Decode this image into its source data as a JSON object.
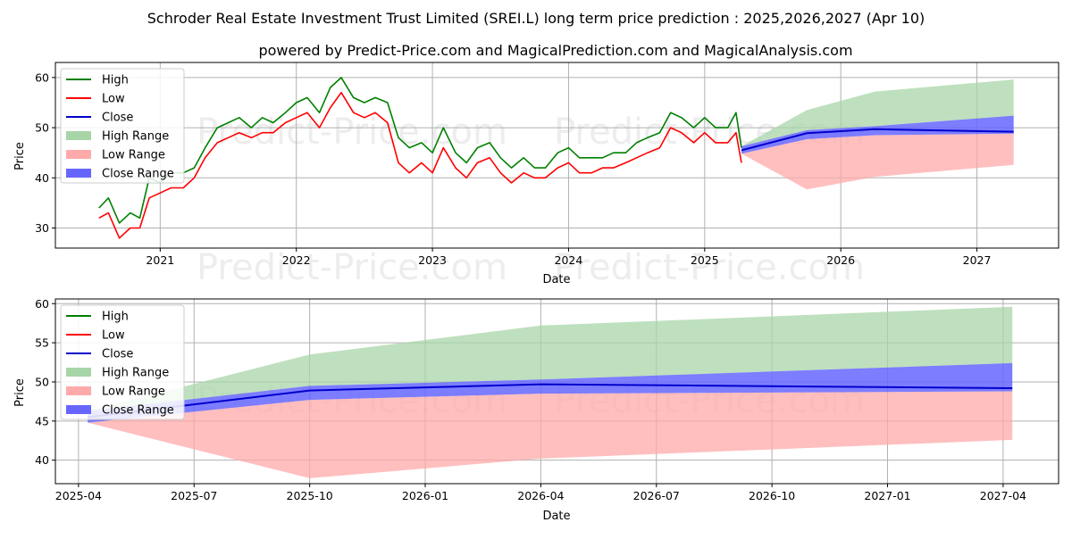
{
  "title": "Schroder Real Estate Investment Trust Limited (SREI.L) long term price prediction : 2025,2026,2027 (Apr 10)",
  "subtitle": "powered by Predict-Price.com and MagicalPrediction.com and MagicalAnalysis.com",
  "watermark": "Predict-Price.com",
  "colors": {
    "high": "#008000",
    "low": "#ff0000",
    "close": "#0000cc",
    "high_range": "#a8d5a8",
    "low_range": "#ffaaaa",
    "close_range": "#6666ff",
    "grid": "#b0b0b0"
  },
  "chart_data": [
    {
      "type": "line",
      "panel": "top",
      "xlabel": "Date",
      "ylabel": "Price",
      "ylim": [
        26,
        63
      ],
      "xlim": [
        2020.23,
        2027.6
      ],
      "x_ticks": [
        "2021",
        "2022",
        "2023",
        "2024",
        "2025",
        "2026",
        "2027"
      ],
      "y_ticks": [
        "30",
        "40",
        "50",
        "60"
      ],
      "grid": true,
      "legend_position": "top-left",
      "legend": [
        "High",
        "Low",
        "Close",
        "High Range",
        "Low Range",
        "Close Range"
      ],
      "history_x": [
        2020.55,
        2020.62,
        2020.7,
        2020.78,
        2020.85,
        2020.92,
        2021.0,
        2021.08,
        2021.17,
        2021.25,
        2021.33,
        2021.42,
        2021.5,
        2021.58,
        2021.67,
        2021.75,
        2021.83,
        2021.92,
        2022.0,
        2022.08,
        2022.17,
        2022.25,
        2022.33,
        2022.42,
        2022.5,
        2022.58,
        2022.67,
        2022.75,
        2022.83,
        2022.92,
        2023.0,
        2023.08,
        2023.17,
        2023.25,
        2023.33,
        2023.42,
        2023.5,
        2023.58,
        2023.67,
        2023.75,
        2023.83,
        2023.92,
        2024.0,
        2024.08,
        2024.17,
        2024.25,
        2024.33,
        2024.42,
        2024.5,
        2024.58,
        2024.67,
        2024.75,
        2024.83,
        2024.92,
        2025.0,
        2025.08,
        2025.17,
        2025.23,
        2025.27
      ],
      "history_high": [
        34,
        36,
        31,
        33,
        32,
        40,
        39,
        41,
        41,
        42,
        46,
        50,
        51,
        52,
        50,
        52,
        51,
        53,
        55,
        56,
        53,
        58,
        60,
        56,
        55,
        56,
        55,
        48,
        46,
        47,
        45,
        50,
        45,
        43,
        46,
        47,
        44,
        42,
        44,
        42,
        42,
        45,
        46,
        44,
        44,
        44,
        45,
        45,
        47,
        48,
        49,
        53,
        52,
        50,
        52,
        50,
        50,
        53,
        46
      ],
      "history_low": [
        32,
        33,
        28,
        30,
        30,
        36,
        37,
        38,
        38,
        40,
        44,
        47,
        48,
        49,
        48,
        49,
        49,
        51,
        52,
        53,
        50,
        54,
        57,
        53,
        52,
        53,
        51,
        43,
        41,
        43,
        41,
        46,
        42,
        40,
        43,
        44,
        41,
        39,
        41,
        40,
        40,
        42,
        43,
        41,
        41,
        42,
        42,
        43,
        44,
        45,
        46,
        50,
        49,
        47,
        49,
        47,
        47,
        49,
        43
      ]
    },
    {
      "type": "area",
      "panel": "bottom",
      "xlabel": "Date",
      "ylabel": "Price",
      "ylim": [
        37,
        60.6
      ],
      "xlim": [
        2025.2,
        2027.37
      ],
      "x_ticks": [
        "2025-04",
        "2025-07",
        "2025-10",
        "2026-01",
        "2026-04",
        "2026-07",
        "2026-10",
        "2027-01",
        "2027-04"
      ],
      "y_ticks": [
        "40",
        "45",
        "50",
        "55",
        "60"
      ],
      "grid": true,
      "legend_position": "top-left",
      "legend": [
        "High",
        "Low",
        "Close",
        "High Range",
        "Low Range",
        "Close Range"
      ],
      "forecast_x": [
        2025.27,
        2025.75,
        2026.25,
        2027.27
      ],
      "close": [
        45.5,
        48.9,
        49.7,
        49.2
      ],
      "high_range_upper": [
        46.3,
        53.5,
        57.2,
        59.6
      ],
      "low_range_lower": [
        44.8,
        37.7,
        40.2,
        42.6
      ],
      "close_range_upper": [
        46.3,
        49.5,
        50.3,
        52.4
      ],
      "close_range_lower": [
        44.8,
        47.7,
        48.5,
        48.8
      ]
    }
  ]
}
